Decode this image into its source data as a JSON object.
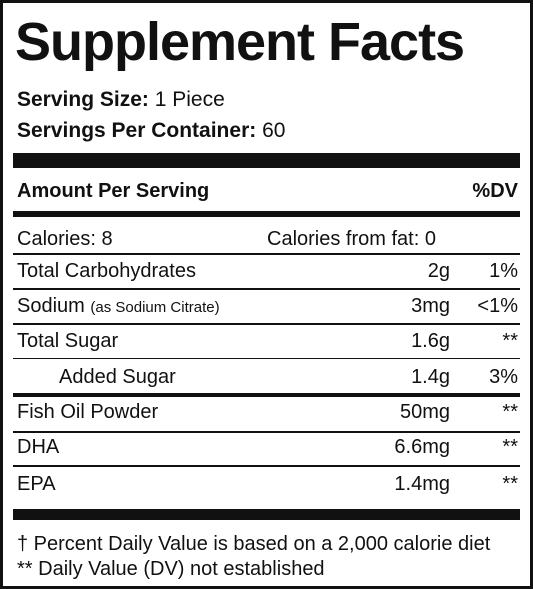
{
  "title": "Supplement Facts",
  "serving_size": {
    "label": "Serving Size:",
    "value": "1 Piece"
  },
  "servings_per_container": {
    "label": "Servings Per Container:",
    "value": "60"
  },
  "header": {
    "amount": "Amount Per Serving",
    "dv": "%DV"
  },
  "calories": {
    "label": "Calories: 8",
    "fat": "Calories from fat: 0"
  },
  "rows": [
    {
      "name": "Total Carbohydrates",
      "amount": "2g",
      "dv": "1%"
    },
    {
      "name": "Sodium",
      "note": "(as Sodium Citrate)",
      "amount": "3mg",
      "dv": "<1%"
    },
    {
      "name": "Total Sugar",
      "amount": "1.6g",
      "dv": "**"
    },
    {
      "name": "Added Sugar",
      "amount": "1.4g",
      "dv": "3%",
      "indent": true
    },
    {
      "name": "Fish Oil Powder",
      "amount": "50mg",
      "dv": "**"
    },
    {
      "name": "DHA",
      "amount": "6.6mg",
      "dv": "**"
    },
    {
      "name": "EPA",
      "amount": "1.4mg",
      "dv": "**"
    }
  ],
  "footnotes": [
    "† Percent Daily Value is based on a 2,000 calorie diet",
    "** Daily Value (DV) not established"
  ]
}
